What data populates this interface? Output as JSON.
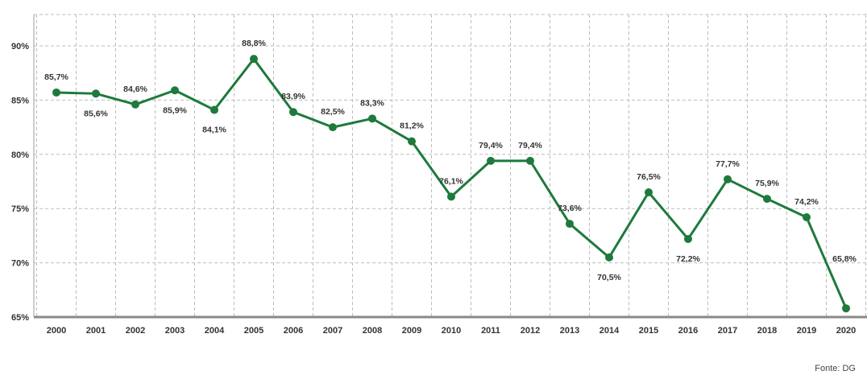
{
  "chart_data": {
    "type": "line",
    "x": [
      "2000",
      "2001",
      "2002",
      "2003",
      "2004",
      "2005",
      "2006",
      "2007",
      "2008",
      "2009",
      "2010",
      "2011",
      "2012",
      "2013",
      "2014",
      "2015",
      "2016",
      "2017",
      "2018",
      "2019",
      "2020"
    ],
    "values": [
      85.7,
      85.6,
      84.6,
      85.9,
      84.1,
      88.8,
      83.9,
      82.5,
      83.3,
      81.2,
      76.1,
      79.4,
      79.4,
      73.6,
      70.5,
      76.5,
      72.2,
      77.7,
      75.9,
      74.2,
      65.8
    ],
    "data_labels": [
      "85,7%",
      "85,6%",
      "84,6%",
      "85,9%",
      "84,1%",
      "88,8%",
      "83,9%",
      "82,5%",
      "83,3%",
      "81,2%",
      "76,1%",
      "79,4%",
      "79,4%",
      "73,6%",
      "70,5%",
      "76,5%",
      "72,2%",
      "77,7%",
      "75,9%",
      "74,2%",
      "65,8%"
    ],
    "label_position": [
      "above",
      "below",
      "above",
      "below",
      "below",
      "above",
      "above",
      "above",
      "above",
      "above",
      "above",
      "above",
      "above",
      "above",
      "below",
      "above",
      "below",
      "above",
      "above",
      "above",
      "above"
    ],
    "y_ticks": [
      "65%",
      "70%",
      "75%",
      "80%",
      "85%",
      "90%"
    ],
    "ylim": [
      65,
      92
    ],
    "grid": true,
    "line_color": "#1e7a3c"
  },
  "source": "Fonte: DG"
}
